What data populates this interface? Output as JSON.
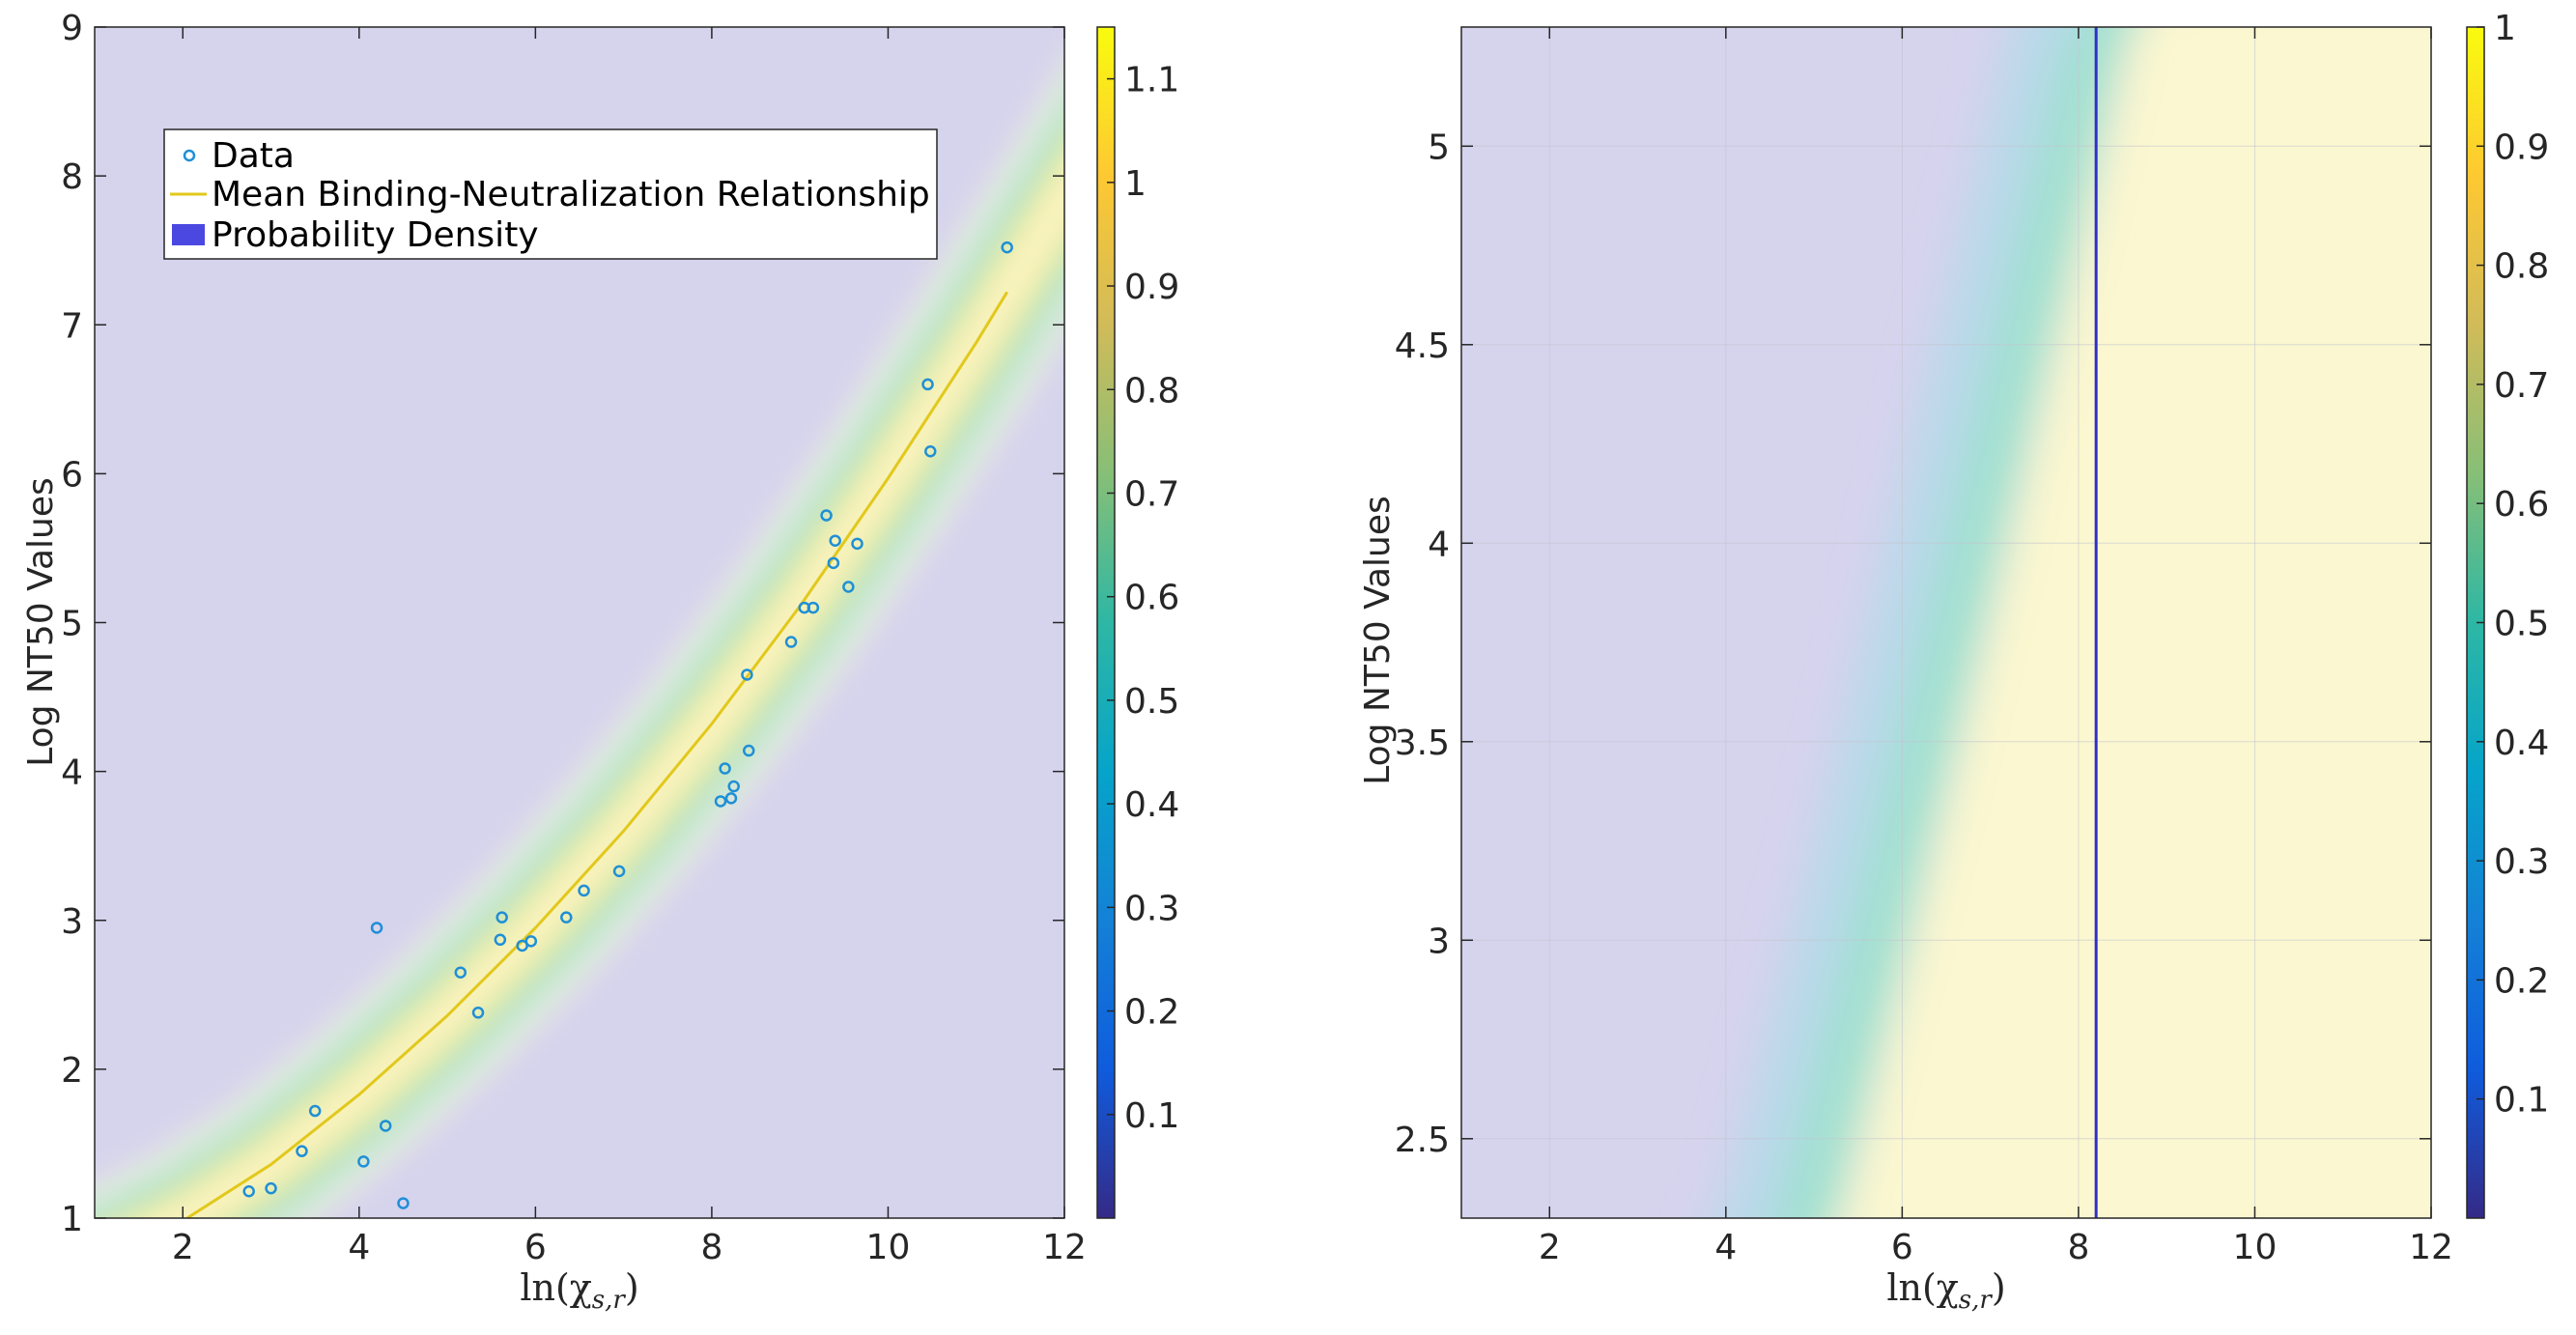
{
  "colors": {
    "background": "#d6d3ed",
    "parula": [
      "#352a87",
      "#0f5cdd",
      "#1481d6",
      "#06a4ca",
      "#2eb7a4",
      "#87bf77",
      "#d1bb59",
      "#fec832",
      "#f9fb0e"
    ],
    "mean_line": "#e2c81c",
    "data_edge": "#1f8fd6",
    "vertical_line": "#2f2fc8",
    "legend_patch": "#4a48e0"
  },
  "chart_data": [
    {
      "type": "heatmap",
      "xlabel": "ln(χ",
      "xlabel_sub": "s,r",
      "xlabel_close": ")",
      "ylabel": "Log NT50 Values",
      "xlim": [
        1,
        12
      ],
      "ylim": [
        1,
        9
      ],
      "xticks": [
        2,
        4,
        6,
        8,
        10,
        12
      ],
      "yticks": [
        1,
        2,
        3,
        4,
        5,
        6,
        7,
        8,
        9
      ],
      "grid": false,
      "legend": {
        "placement": "top-left",
        "entries": [
          "Data",
          "Mean Binding-Neutralization Relationship",
          "Probability Density"
        ]
      },
      "colorbar": {
        "range": [
          0,
          1.15
        ],
        "ticks": [
          "0.1",
          "0.2",
          "0.3",
          "0.4",
          "0.5",
          "0.6",
          "0.7",
          "0.8",
          "0.9",
          "1",
          "1.1"
        ]
      },
      "mean_curve": {
        "x": [
          2.05,
          3,
          4,
          5,
          6,
          7,
          8,
          9,
          10,
          11,
          11.35
        ],
        "y": [
          1.0,
          1.36,
          1.83,
          2.36,
          2.95,
          3.6,
          4.32,
          5.11,
          5.97,
          6.88,
          7.22
        ]
      },
      "scatter": {
        "x": [
          2.75,
          3.0,
          3.35,
          3.5,
          4.05,
          4.2,
          4.3,
          4.5,
          5.15,
          5.35,
          5.6,
          5.62,
          5.85,
          5.95,
          6.35,
          6.55,
          6.95,
          8.1,
          8.15,
          8.22,
          8.25,
          8.4,
          8.42,
          8.9,
          9.05,
          9.15,
          9.3,
          9.38,
          9.4,
          9.55,
          9.65,
          10.45,
          10.48,
          11.35
        ],
        "y": [
          1.18,
          1.2,
          1.45,
          1.72,
          1.38,
          2.95,
          1.62,
          1.1,
          2.65,
          2.38,
          2.87,
          3.02,
          2.83,
          2.86,
          3.02,
          3.2,
          3.33,
          3.8,
          4.02,
          3.82,
          3.9,
          4.65,
          4.14,
          4.87,
          5.1,
          5.1,
          5.72,
          5.4,
          5.55,
          5.24,
          5.53,
          6.6,
          6.15,
          7.52
        ]
      }
    },
    {
      "type": "heatmap",
      "xlabel": "ln(χ",
      "xlabel_sub": "s,r",
      "xlabel_close": ")",
      "ylabel": "Log NT50 Values",
      "xlim": [
        1,
        12
      ],
      "ylim": [
        2.3,
        5.3
      ],
      "xticks": [
        2,
        4,
        6,
        8,
        10,
        12
      ],
      "yticks": [
        2.5,
        3,
        3.5,
        4,
        4.5,
        5
      ],
      "grid": true,
      "colorbar": {
        "range": [
          0,
          1
        ],
        "ticks": [
          "0.1",
          "0.2",
          "0.3",
          "0.4",
          "0.5",
          "0.6",
          "0.7",
          "0.8",
          "0.9",
          "1"
        ]
      },
      "vertical_line_x": 8.2,
      "transition_curve": {
        "y": [
          2.3,
          3.0,
          4.0,
          5.3
        ],
        "x": [
          5.3,
          6.1,
          7.2,
          8.6
        ]
      }
    }
  ]
}
